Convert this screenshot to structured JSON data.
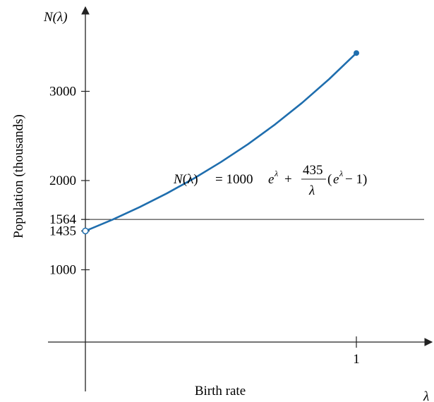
{
  "chart_data": {
    "type": "line",
    "xlabel": "Birth rate",
    "ylabel": "Population (thousands)",
    "x_axis_symbol": "λ",
    "y_axis_symbol": "N(λ)",
    "x_ticks": [
      {
        "value": 1,
        "label": "1"
      }
    ],
    "y_ticks": [
      {
        "value": 1000,
        "label": "1000"
      },
      {
        "value": 1435,
        "label": "1435"
      },
      {
        "value": 1564,
        "label": "1564"
      },
      {
        "value": 2000,
        "label": "2000"
      },
      {
        "value": 3000,
        "label": "3000"
      }
    ],
    "xlim": [
      -0.13,
      1.25
    ],
    "ylim": [
      0,
      3500
    ],
    "reference_line": {
      "y": 1564
    },
    "annotation": {
      "lhs": "N(λ)",
      "eq": "= 1000",
      "e": "e",
      "sup": "λ",
      "plus": "+",
      "num": "435",
      "den": "λ",
      "paren_open": "(",
      "paren_close": " − 1)"
    },
    "series": [
      {
        "color": "#1f6eae",
        "x": [
          0,
          0.1,
          0.2,
          0.3,
          0.4,
          0.5,
          0.6,
          0.7,
          0.8,
          0.9,
          1.0
        ],
        "y": [
          1435,
          1562,
          1702,
          1855,
          2023,
          2207,
          2408,
          2629,
          2872,
          3138,
          3429
        ],
        "start_marker": "open",
        "end_marker": "filled"
      }
    ]
  }
}
